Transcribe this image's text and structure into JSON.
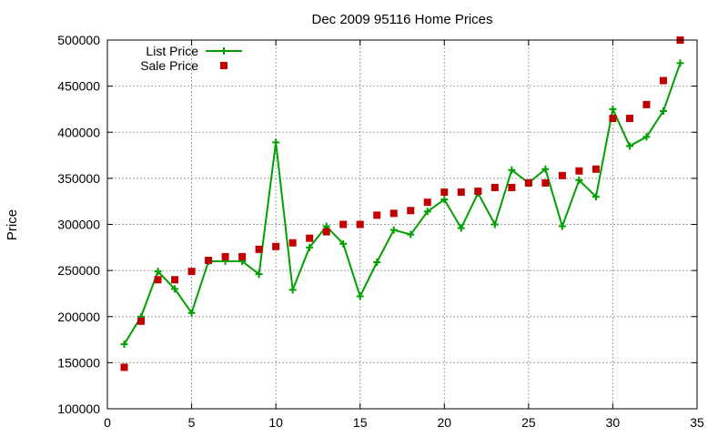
{
  "chart_data": {
    "type": "line",
    "title": "Dec 2009 95116 Home Prices",
    "xlabel": "",
    "ylabel": "Price",
    "xlim": [
      0,
      35
    ],
    "ylim": [
      100000,
      500000
    ],
    "xticks": [
      0,
      5,
      10,
      15,
      20,
      25,
      30,
      35
    ],
    "yticks": [
      100000,
      150000,
      200000,
      250000,
      300000,
      350000,
      400000,
      450000,
      500000
    ],
    "grid": true,
    "legend_position": "top-left",
    "series": [
      {
        "name": "List Price",
        "style": "linespoints",
        "marker": "plus",
        "color": "#00a000",
        "x": [
          1,
          2,
          3,
          4,
          5,
          6,
          7,
          8,
          9,
          10,
          11,
          12,
          13,
          14,
          15,
          16,
          17,
          18,
          19,
          20,
          21,
          22,
          23,
          24,
          25,
          26,
          27,
          28,
          29,
          30,
          31,
          32,
          33,
          34
        ],
        "values": [
          170000,
          200000,
          249000,
          230000,
          204000,
          260000,
          260000,
          260000,
          246000,
          389000,
          229000,
          275000,
          298000,
          279000,
          222000,
          259000,
          294000,
          289000,
          314000,
          327000,
          296000,
          334000,
          300000,
          359000,
          345000,
          360000,
          298000,
          348000,
          330000,
          425000,
          385000,
          395000,
          423000,
          475000
        ]
      },
      {
        "name": "Sale Price",
        "style": "points",
        "marker": "square",
        "color": "#c00000",
        "x": [
          1,
          2,
          3,
          4,
          5,
          6,
          7,
          8,
          9,
          10,
          11,
          12,
          13,
          14,
          15,
          16,
          17,
          18,
          19,
          20,
          21,
          22,
          23,
          24,
          25,
          26,
          27,
          28,
          29,
          30,
          31,
          32,
          33,
          34
        ],
        "values": [
          145000,
          195000,
          240000,
          240000,
          249000,
          261000,
          265000,
          265000,
          273000,
          276000,
          280000,
          285000,
          292000,
          300000,
          300000,
          310000,
          312000,
          315000,
          324000,
          335000,
          335000,
          336000,
          340000,
          340000,
          345000,
          345000,
          353000,
          358000,
          360000,
          415000,
          415000,
          430000,
          456000,
          500000
        ]
      }
    ]
  }
}
